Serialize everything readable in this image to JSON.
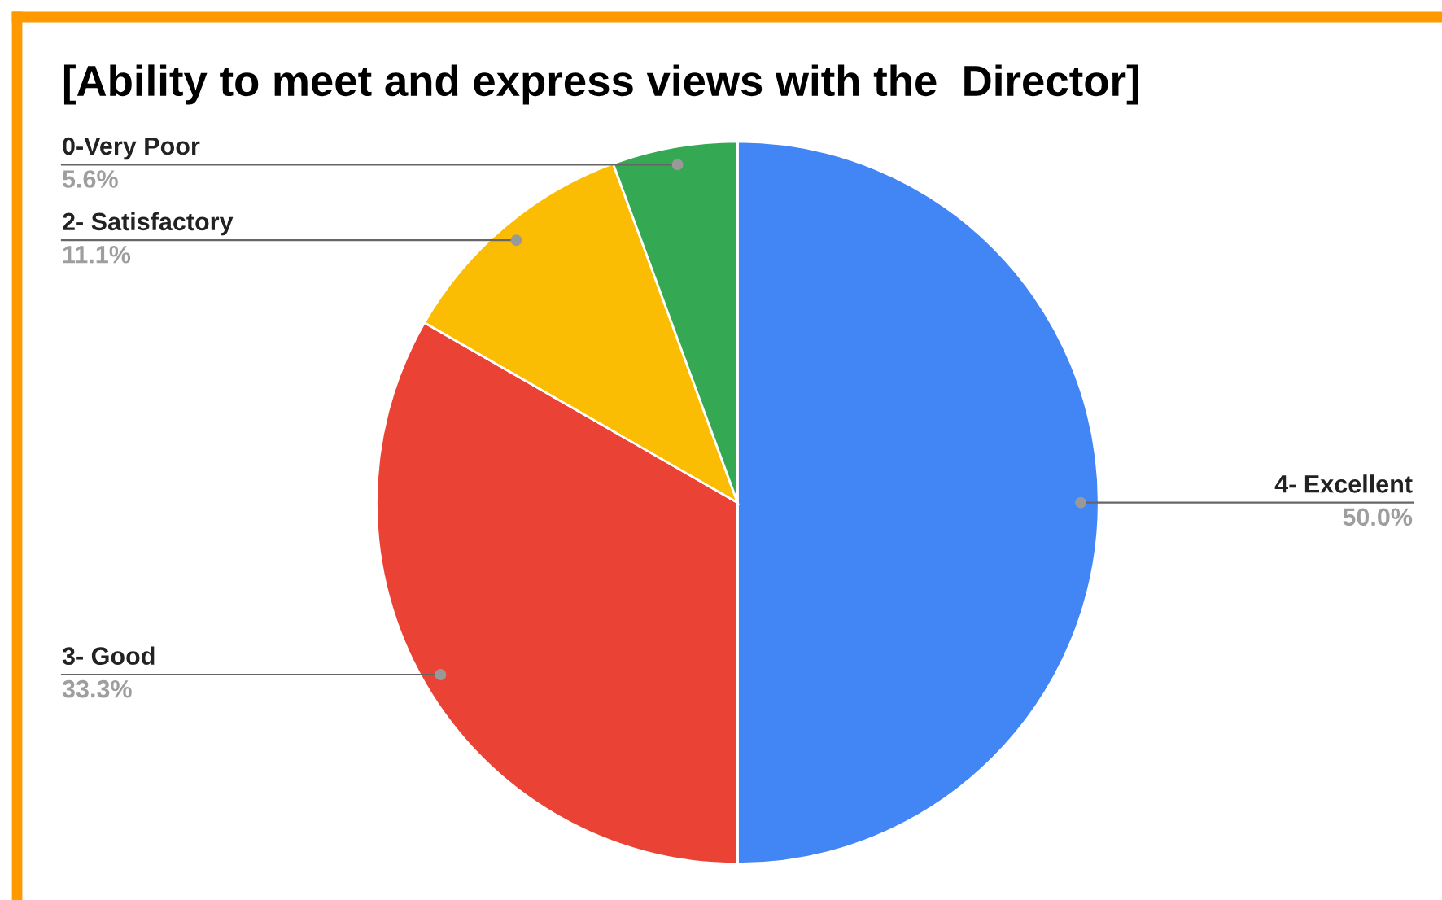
{
  "chart_data": {
    "type": "pie",
    "title": "[Ability to meet and express views with the  Director]",
    "categories": [
      "4- Excellent",
      "3- Good",
      "2- Satisfactory",
      "0-Very Poor"
    ],
    "values": [
      50.0,
      33.3,
      11.1,
      5.6
    ],
    "colors": [
      "#4285f4",
      "#ea4335",
      "#fbbc04",
      "#34a853"
    ],
    "value_labels": [
      "50.0%",
      "33.3%",
      "11.1%",
      "5.6%"
    ],
    "legend": false
  }
}
